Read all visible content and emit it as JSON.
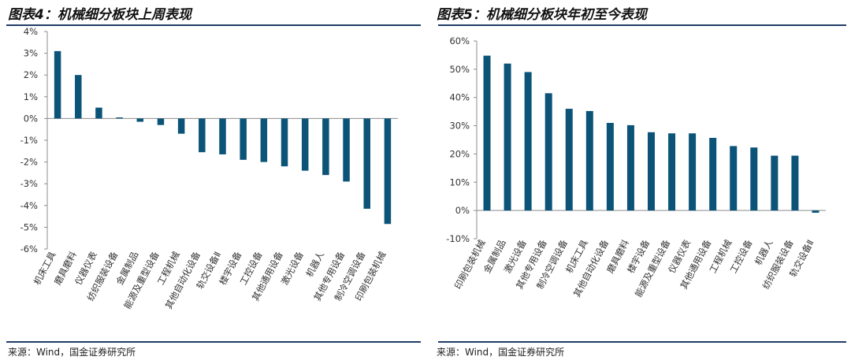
{
  "chart_data": [
    {
      "type": "bar",
      "title": "图表4：机械细分板块上周表现",
      "source": "来源：Wind，国金证券研究所",
      "categories": [
        "机床工具",
        "磨具磨料",
        "仪器仪表",
        "纺织服装设备",
        "金属制品",
        "能源及重型设备",
        "工程机械",
        "其他自动化设备",
        "轨交设备Ⅱ",
        "楼宇设备",
        "工控设备",
        "其他通用设备",
        "激光设备",
        "机器人",
        "其他专用设备",
        "制冷空调设备",
        "印刷包装机械"
      ],
      "values": [
        3.1,
        2.0,
        0.5,
        0.05,
        -0.15,
        -0.3,
        -0.7,
        -1.55,
        -1.65,
        -1.9,
        -2.0,
        -2.2,
        -2.4,
        -2.6,
        -2.9,
        -4.15,
        -4.85
      ],
      "ylim": [
        -6,
        4
      ],
      "yticks": [
        4,
        3,
        2,
        1,
        0,
        -1,
        -2,
        -3,
        -4,
        -5,
        -6
      ],
      "ytick_labels": [
        "4%",
        "3%",
        "2%",
        "1%",
        "0%",
        "-1%",
        "-2%",
        "-3%",
        "-4%",
        "-5%",
        "-6%"
      ],
      "xlabel": "",
      "ylabel": "",
      "color": "#0b5478"
    },
    {
      "type": "bar",
      "title": "图表5：机械细分板块年初至今表现",
      "source": "来源：Wind，国金证券研究所",
      "categories": [
        "印刷包装机械",
        "金属制品",
        "激光设备",
        "其他专用设备",
        "制冷空调设备",
        "机床工具",
        "其他自动化设备",
        "磨具磨料",
        "楼宇设备",
        "能源及重型设备",
        "仪器仪表",
        "其他通用设备",
        "工程机械",
        "工控设备",
        "机器人",
        "纺织服装设备",
        "轨交设备Ⅱ"
      ],
      "values": [
        54.8,
        52.0,
        49.0,
        41.5,
        36.0,
        35.2,
        31.0,
        30.2,
        27.7,
        27.3,
        27.3,
        25.7,
        22.8,
        22.3,
        19.4,
        19.4,
        -0.8
      ],
      "ylim": [
        -10,
        60
      ],
      "yticks": [
        60,
        50,
        40,
        30,
        20,
        10,
        0,
        -10
      ],
      "ytick_labels": [
        "60%",
        "50%",
        "40%",
        "30%",
        "20%",
        "10%",
        "0%",
        "-10%"
      ],
      "xlabel": "",
      "ylabel": "",
      "color": "#0b5478"
    }
  ]
}
